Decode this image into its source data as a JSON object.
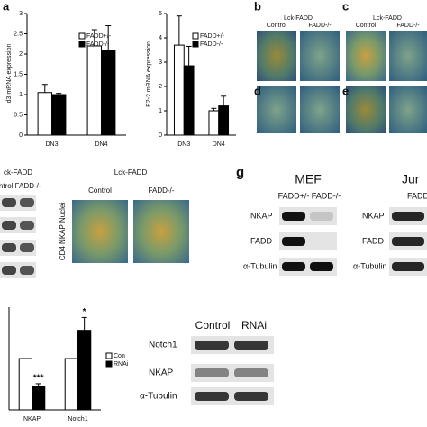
{
  "chart_data": [
    {
      "type": "bar",
      "ylabel": "Id3 mRNA expression",
      "categories": [
        "DN3",
        "DN4"
      ],
      "series": [
        {
          "name": "FADD+/-",
          "color": "#ffffff",
          "values": [
            1.05,
            2.2
          ],
          "errors": [
            0.2,
            0.4
          ]
        },
        {
          "name": "FADD-/-",
          "color": "#000000",
          "values": [
            1.0,
            2.1
          ],
          "errors": [
            0.03,
            0.6
          ]
        }
      ],
      "ylim": [
        0,
        3
      ],
      "yticks": [
        0,
        0.5,
        1,
        1.5,
        2,
        2.5,
        3
      ]
    },
    {
      "type": "bar",
      "ylabel": "E2-2 mRNA expression",
      "categories": [
        "DN3",
        "DN4"
      ],
      "series": [
        {
          "name": "FADD+/-",
          "color": "#ffffff",
          "values": [
            3.7,
            1.0
          ],
          "errors": [
            1.2,
            0.1
          ]
        },
        {
          "name": "FADD-/-",
          "color": "#000000",
          "values": [
            2.85,
            1.2
          ],
          "errors": [
            0.8,
            0.4
          ]
        }
      ],
      "ylim": [
        0,
        5
      ],
      "yticks": [
        0,
        1,
        2,
        3,
        4,
        5
      ]
    },
    {
      "type": "bar",
      "categories": [
        "NKAP",
        "Notch1"
      ],
      "series": [
        {
          "name": "Con",
          "color": "#ffffff",
          "values": [
            1.0,
            1.0
          ],
          "errors": [
            0,
            0
          ]
        },
        {
          "name": "RNAi",
          "color": "#000000",
          "values": [
            0.45,
            1.55
          ],
          "errors": [
            0.06,
            0.25
          ]
        }
      ],
      "annotations": [
        "***",
        "*"
      ],
      "ylim": [
        0,
        2
      ]
    }
  ],
  "labels": [
    "a",
    "b",
    "Lck-FADD",
    "Control",
    "FADD-/-",
    "c",
    "Lck-FADD",
    "Control",
    "FADD-/-",
    "d",
    "e",
    "ck-FADD",
    "ontrol FADD-/-",
    "Lck-FADD",
    "Control",
    "FADD-/-",
    "CD4 NKAP Nuclei",
    "g",
    "MEF",
    "FADD+/-",
    "FADD-/-",
    "NKAP",
    "FADD",
    "α-Tubulin",
    "Jur",
    "FADD+/",
    "NKAP",
    "FADD",
    "α-Tubulin",
    "Control",
    "RNAi",
    "Notch1",
    "NKAP",
    "α-Tubulin"
  ]
}
